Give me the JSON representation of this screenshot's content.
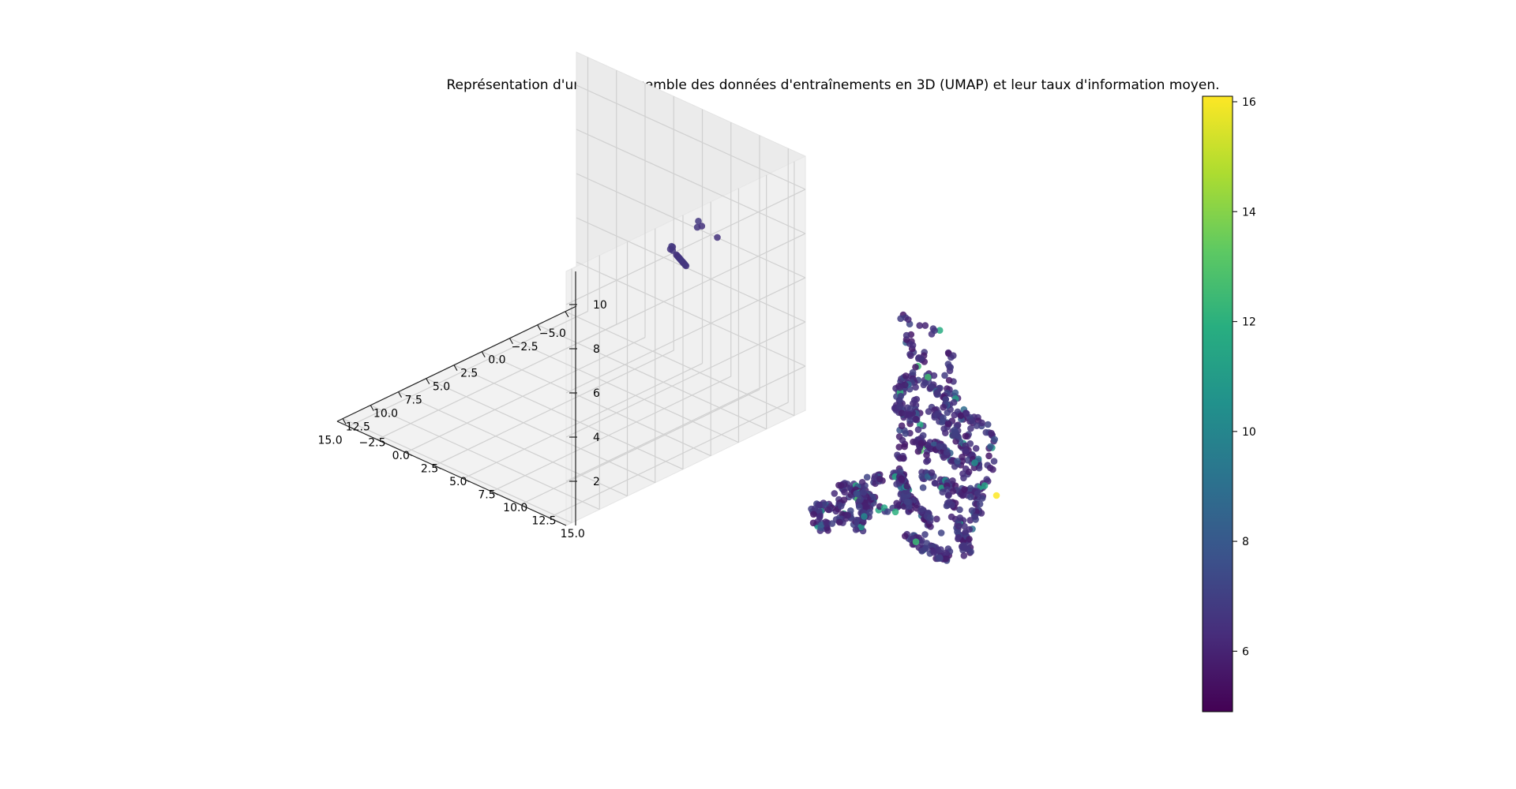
{
  "chart_data": {
    "type": "scatter",
    "projection": "3d",
    "title": "Représentation d'un sous ensemble des données d'entraînements en 3D (UMAP) et leur taux d'information moyen.",
    "xlabel": "",
    "ylabel": "",
    "zlabel": "",
    "x_ticks": [
      "−5.0",
      "−2.5",
      "0.0",
      "2.5",
      "5.0",
      "7.5",
      "10.0",
      "12.5",
      "15.0"
    ],
    "y_ticks": [
      "−2.5",
      "0.0",
      "2.5",
      "5.0",
      "7.5",
      "10.0",
      "12.5",
      "15.0"
    ],
    "z_ticks": [
      "2",
      "4",
      "6",
      "8",
      "10"
    ],
    "xlim": [
      -6,
      15.5
    ],
    "ylim": [
      -3.5,
      16.5
    ],
    "zlim": [
      0,
      11.5
    ],
    "grid": true,
    "colormap": "viridis",
    "colorbar": {
      "min": 4.9,
      "max": 16.1,
      "ticks": [
        "6",
        "8",
        "10",
        "12",
        "14",
        "16"
      ]
    },
    "clusters": [
      {
        "name": "isolated-point",
        "x": [
          -5.6
        ],
        "y": [
          9.2
        ],
        "z": [
          6.2
        ],
        "value": [
          6.5
        ]
      },
      {
        "name": "small-group",
        "x": [
          -4.0,
          -4.0,
          -4.1
        ],
        "y": [
          9.0,
          9.1,
          9.3
        ],
        "z": [
          7.0,
          7.3,
          7.1
        ],
        "value": [
          6.6,
          6.7,
          6.5
        ]
      },
      {
        "name": "diagonal-segment",
        "x_range": [
          -3.2,
          -1.3
        ],
        "y_range": [
          8.8,
          9.8
        ],
        "z_range": [
          5.4,
          6.6
        ],
        "count": 14,
        "value": 6.6
      },
      {
        "name": "top-small-group",
        "x": [
          4.6,
          4.9,
          5.1,
          5.0
        ],
        "y": [
          15.2,
          15.5,
          15.6,
          15.4
        ],
        "z": [
          9.5,
          9.8,
          9.9,
          9.7
        ],
        "value": [
          6.6,
          6.5,
          6.7,
          6.6
        ]
      },
      {
        "name": "main-structure",
        "x_range": [
          2.0,
          15.0
        ],
        "y_range": [
          -2.5,
          15.5
        ],
        "z_range": [
          0.5,
          10.5
        ],
        "count": 900,
        "typical_value": 6.2,
        "max_value": 16.1
      }
    ]
  }
}
